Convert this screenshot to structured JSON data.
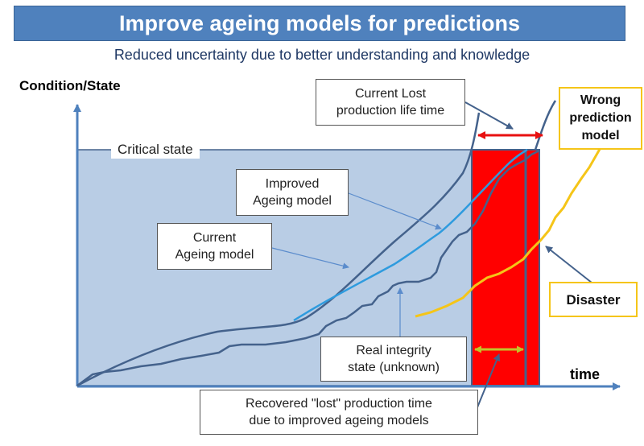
{
  "title": "Improve ageing models for predictions",
  "subtitle": "Reduced uncertainty due to better understanding and knowledge",
  "axes": {
    "y_label": "Condition/State",
    "x_label": "time"
  },
  "labels": {
    "critical_state": "Critical state",
    "current_lost": [
      "Current Lost",
      "production life time"
    ],
    "improved_model": [
      "Improved",
      "Ageing model"
    ],
    "current_model": [
      "Current",
      "Ageing model"
    ],
    "real_integrity": [
      "Real integrity",
      "state (unknown)"
    ],
    "recovered": [
      "Recovered \"lost\" production time",
      "due to improved ageing models"
    ],
    "wrong_prediction": [
      "Wrong",
      "prediction",
      "model"
    ],
    "disaster": "Disaster"
  },
  "colors": {
    "title_bg": "#4f81bd",
    "subtitle_text": "#1f3864",
    "region_fill": "#b9cde5",
    "axis": "#4f81bd",
    "curve_dark": "#44628c",
    "improved_curve": "#2e9bde",
    "wrong_model": "#f5c518",
    "lost_zone": "#ff0000",
    "double_arrow": "#e81010",
    "recovered_arrow": "#c3c32a"
  }
}
